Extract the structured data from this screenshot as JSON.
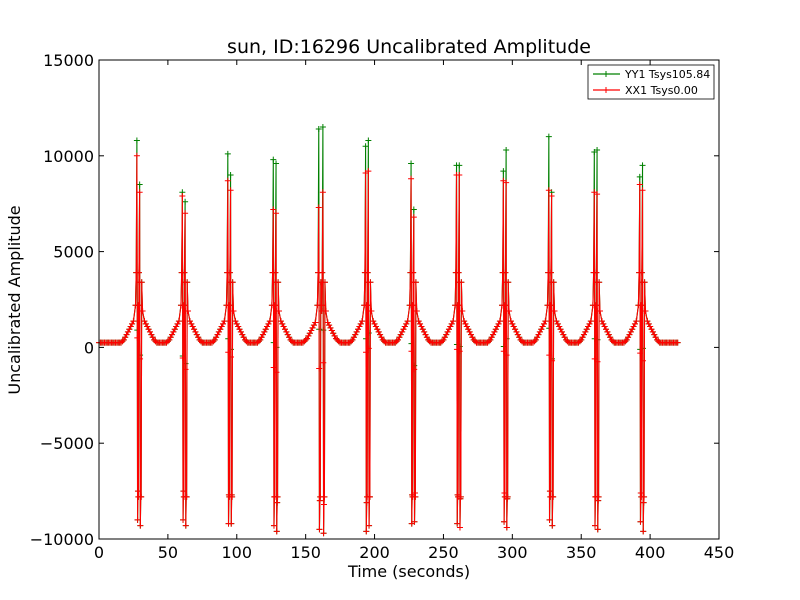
{
  "chart_data": {
    "type": "line",
    "title": "sun, ID:16296 Uncalibrated Amplitude",
    "xlabel": "Time (seconds)",
    "ylabel": "Uncalibrated Amplitude",
    "xlim": [
      0,
      450
    ],
    "ylim": [
      -10000,
      15000
    ],
    "xticks": [
      0,
      50,
      100,
      150,
      200,
      250,
      300,
      350,
      400,
      450
    ],
    "yticks": [
      -10000,
      -5000,
      0,
      5000,
      10000,
      15000
    ],
    "xtick_labels": [
      "0",
      "50",
      "100",
      "150",
      "200",
      "250",
      "300",
      "350",
      "400",
      "450"
    ],
    "ytick_labels": [
      "−10000",
      "−5000",
      "0",
      "5000",
      "10000",
      "15000"
    ],
    "grid": false,
    "legend_position": "top-right",
    "x_range": [
      0,
      420
    ],
    "baseline": 400,
    "series": [
      {
        "name": "YY1 Tsys105.84",
        "color": "#008000",
        "marker": "plus",
        "peaks": [
          {
            "t": 28,
            "peak": 10800,
            "dip": -9000
          },
          {
            "t": 30,
            "peak": 8500,
            "dip": -9300
          },
          {
            "t": 61,
            "peak": 8100,
            "dip": -9000
          },
          {
            "t": 63,
            "peak": 7600,
            "dip": -9300
          },
          {
            "t": 94,
            "peak": 10100,
            "dip": -9200
          },
          {
            "t": 96,
            "peak": 9000,
            "dip": -9200
          },
          {
            "t": 127,
            "peak": 9800,
            "dip": -9300
          },
          {
            "t": 129,
            "peak": 9600,
            "dip": -9600
          },
          {
            "t": 160,
            "peak": 11400,
            "dip": -9500
          },
          {
            "t": 163,
            "peak": 11500,
            "dip": -9700
          },
          {
            "t": 194,
            "peak": 10500,
            "dip": -9600
          },
          {
            "t": 196,
            "peak": 10800,
            "dip": -9300
          },
          {
            "t": 227,
            "peak": 9600,
            "dip": -9200
          },
          {
            "t": 229,
            "peak": 7200,
            "dip": -9100
          },
          {
            "t": 260,
            "peak": 9500,
            "dip": -9200
          },
          {
            "t": 262,
            "peak": 9500,
            "dip": -9400
          },
          {
            "t": 294,
            "peak": 9200,
            "dip": -9100
          },
          {
            "t": 296,
            "peak": 10300,
            "dip": -9400
          },
          {
            "t": 327,
            "peak": 11000,
            "dip": -9000
          },
          {
            "t": 329,
            "peak": 8100,
            "dip": -9300
          },
          {
            "t": 360,
            "peak": 10200,
            "dip": -9300
          },
          {
            "t": 362,
            "peak": 10300,
            "dip": -9500
          },
          {
            "t": 393,
            "peak": 8900,
            "dip": -9100
          },
          {
            "t": 395,
            "peak": 9500,
            "dip": -9600
          }
        ]
      },
      {
        "name": "XX1 Tsys0.00",
        "color": "#ff0000",
        "marker": "plus",
        "peaks": [
          {
            "t": 28,
            "peak": 10000,
            "dip": -9000
          },
          {
            "t": 30,
            "peak": 8100,
            "dip": -9300
          },
          {
            "t": 61,
            "peak": 7900,
            "dip": -9000
          },
          {
            "t": 63,
            "peak": 7000,
            "dip": -9300
          },
          {
            "t": 94,
            "peak": 8700,
            "dip": -9200
          },
          {
            "t": 96,
            "peak": 8200,
            "dip": -9200
          },
          {
            "t": 127,
            "peak": 7200,
            "dip": -9300
          },
          {
            "t": 129,
            "peak": 7000,
            "dip": -9600
          },
          {
            "t": 160,
            "peak": 7300,
            "dip": -9500
          },
          {
            "t": 163,
            "peak": 8100,
            "dip": -9700
          },
          {
            "t": 194,
            "peak": 9100,
            "dip": -9600
          },
          {
            "t": 196,
            "peak": 9200,
            "dip": -9300
          },
          {
            "t": 227,
            "peak": 8800,
            "dip": -9200
          },
          {
            "t": 229,
            "peak": 6800,
            "dip": -9100
          },
          {
            "t": 260,
            "peak": 9000,
            "dip": -9200
          },
          {
            "t": 262,
            "peak": 9000,
            "dip": -9400
          },
          {
            "t": 294,
            "peak": 8700,
            "dip": -9100
          },
          {
            "t": 296,
            "peak": 8600,
            "dip": -9400
          },
          {
            "t": 327,
            "peak": 8200,
            "dip": -9000
          },
          {
            "t": 329,
            "peak": 7900,
            "dip": -9300
          },
          {
            "t": 360,
            "peak": 8100,
            "dip": -9300
          },
          {
            "t": 362,
            "peak": 8000,
            "dip": -9500
          },
          {
            "t": 393,
            "peak": 8500,
            "dip": -9100
          },
          {
            "t": 395,
            "peak": 8200,
            "dip": -9600
          }
        ]
      }
    ]
  }
}
